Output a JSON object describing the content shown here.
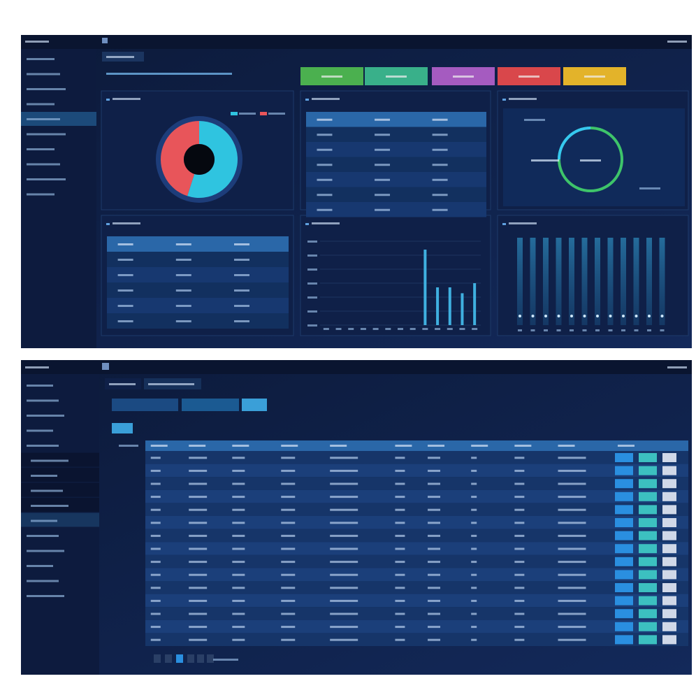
{
  "dashboard": {
    "donut": {
      "type": "pie",
      "values": [
        55,
        45
      ],
      "colors": [
        "#2fc4e0",
        "#e8555a"
      ]
    },
    "bars": {
      "type": "bar",
      "categories": [
        null,
        null,
        null,
        null,
        null,
        null,
        null,
        null,
        null,
        null,
        null,
        null,
        null
      ],
      "values": [
        0,
        0,
        0,
        0,
        0,
        0,
        0,
        0,
        90,
        45,
        45,
        38,
        50
      ],
      "color": "#3fb0e0",
      "ylim": [
        0,
        100
      ]
    }
  }
}
